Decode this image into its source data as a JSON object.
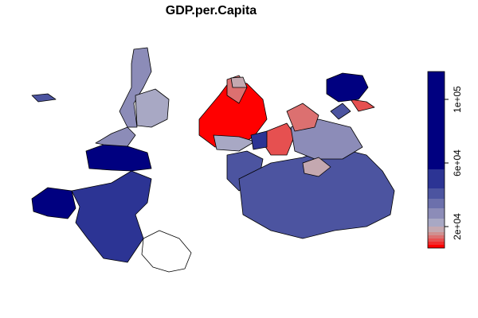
{
  "chart_data": {
    "type": "choropleth",
    "title": "GDP.per.Capita",
    "breaks": [
      6500,
      8500,
      10500,
      12500,
      14500,
      16500,
      20000,
      25000,
      31500,
      37500,
      44000,
      56000,
      117500
    ],
    "colors": [
      "#ff0000",
      "#f02c2c",
      "#e65050",
      "#dc7070",
      "#d09090",
      "#c4a8b0",
      "#a8a8c4",
      "#8c8cb8",
      "#6c70ac",
      "#4c54a0",
      "#2c3494",
      "#000080"
    ],
    "ylim": [
      6500,
      117500
    ],
    "yticks": [
      {
        "value": 20000,
        "label": "2e+04"
      },
      {
        "value": 60000,
        "label": "6e+04"
      },
      {
        "value": 100000,
        "label": "1e+05"
      }
    ]
  }
}
